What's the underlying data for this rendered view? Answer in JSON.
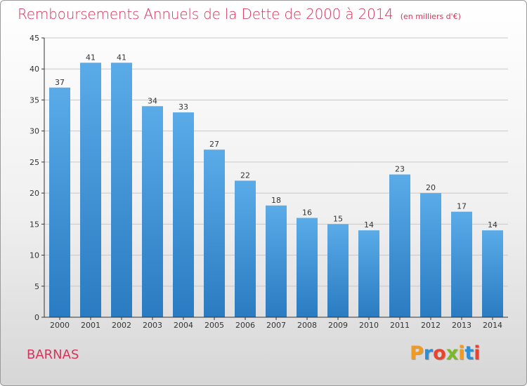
{
  "chart_data": {
    "type": "bar",
    "title": "Remboursements Annuels de la Dette de 2000 à 2014",
    "subtitle": "(en milliers d'€)",
    "categories": [
      "2000",
      "2001",
      "2002",
      "2003",
      "2004",
      "2005",
      "2006",
      "2007",
      "2008",
      "2009",
      "2010",
      "2011",
      "2012",
      "2013",
      "2014"
    ],
    "values": [
      37,
      41,
      41,
      34,
      33,
      27,
      22,
      18,
      16,
      15,
      14,
      23,
      20,
      17,
      14
    ],
    "ylim": [
      0,
      45
    ],
    "yticks": [
      0,
      5,
      10,
      15,
      20,
      25,
      30,
      35,
      40,
      45
    ],
    "xlabel": "",
    "ylabel": "",
    "grid": true,
    "bar_color_top": "#5aabe8",
    "bar_color_bottom": "#2a7bc1"
  },
  "footer": {
    "commune": "BARNAS",
    "logo_text": "Proxiti",
    "logo_colors": [
      "#f39a1e",
      "#2c8fd6",
      "#e8432e",
      "#7cb928",
      "#f39a1e",
      "#2c8fd6",
      "#e8432e"
    ]
  },
  "colors": {
    "title": "#d6345a",
    "axis": "#333333",
    "grid": "#c8c8c8"
  }
}
